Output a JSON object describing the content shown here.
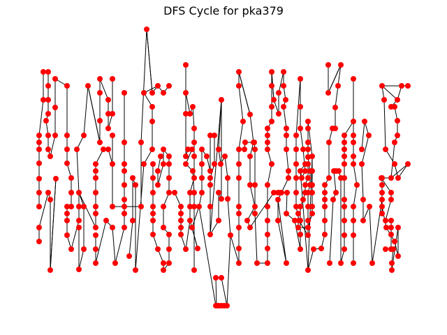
{
  "title": "DFS Cycle for pka379",
  "colors": {
    "node": "#ff0000",
    "edge": "#000000",
    "background": "#ffffff"
  },
  "chart_data": {
    "type": "graph",
    "title": "DFS Cycle for pka379",
    "axes": "off",
    "node_color": "red",
    "edge_color": "black",
    "visible_nodes": 380,
    "note": ""
  }
}
